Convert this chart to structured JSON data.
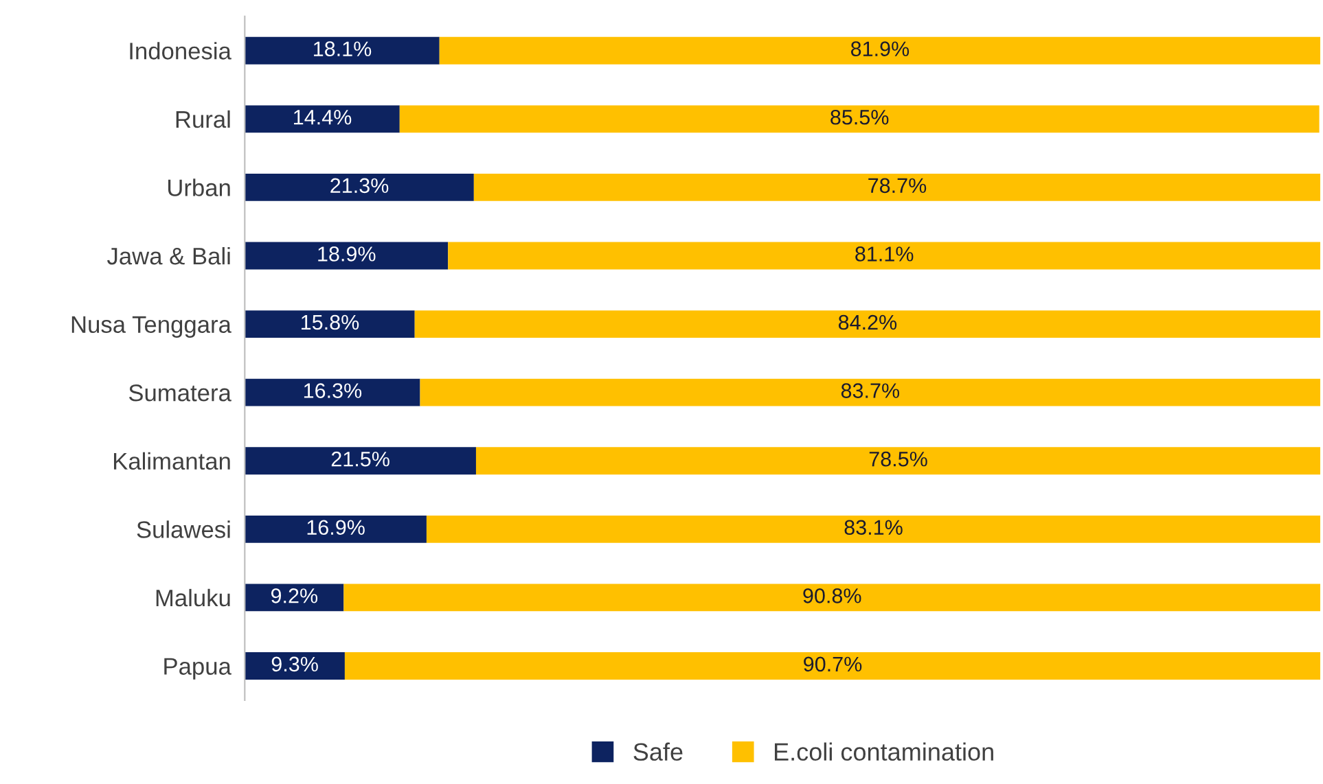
{
  "chart_data": {
    "type": "bar",
    "orientation": "horizontal",
    "stacked": true,
    "categories": [
      "Indonesia",
      "Rural",
      "Urban",
      "Jawa & Bali",
      "Nusa Tenggara",
      "Sumatera",
      "Kalimantan",
      "Sulawesi",
      "Maluku",
      "Papua"
    ],
    "series": [
      {
        "name": "Safe",
        "color": "#0d2360",
        "values": [
          18.1,
          14.4,
          21.3,
          18.9,
          15.8,
          16.3,
          21.5,
          16.9,
          9.2,
          9.3
        ],
        "value_labels": [
          "18.1%",
          "14.4%",
          "21.3%",
          "18.9%",
          "15.8%",
          "16.3%",
          "21.5%",
          "16.9%",
          "9.2%",
          "9.3%"
        ]
      },
      {
        "name": "E.coli contamination",
        "color": "#ffc000",
        "values": [
          81.9,
          85.5,
          78.7,
          81.1,
          84.2,
          83.7,
          78.5,
          83.1,
          90.8,
          90.7
        ],
        "value_labels": [
          "81.9%",
          "85.5%",
          "78.7%",
          "81.1%",
          "84.2%",
          "83.7%",
          "78.5%",
          "83.1%",
          "90.8%",
          "90.7%"
        ]
      }
    ],
    "xlim": [
      0,
      100
    ],
    "tick_labels": "y",
    "grid": false,
    "legend": "bottom"
  }
}
